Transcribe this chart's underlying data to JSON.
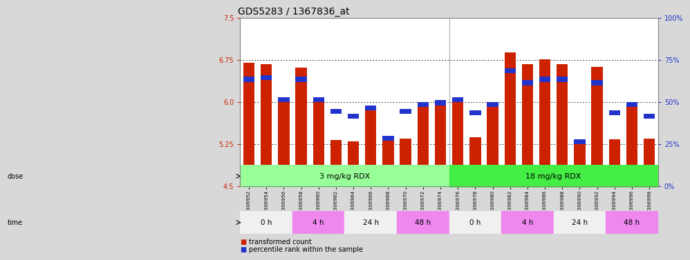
{
  "title": "GDS5283 / 1367836_at",
  "samples": [
    "GSM306952",
    "GSM306954",
    "GSM306956",
    "GSM306958",
    "GSM306960",
    "GSM306962",
    "GSM306964",
    "GSM306966",
    "GSM306968",
    "GSM306970",
    "GSM306972",
    "GSM306974",
    "GSM306976",
    "GSM306978",
    "GSM306980",
    "GSM306982",
    "GSM306984",
    "GSM306986",
    "GSM306988",
    "GSM306990",
    "GSM306992",
    "GSM306994",
    "GSM306996",
    "GSM306998"
  ],
  "transformed_count": [
    6.7,
    6.68,
    6.08,
    6.62,
    6.08,
    5.32,
    5.3,
    5.92,
    5.35,
    5.35,
    5.93,
    5.98,
    6.0,
    5.37,
    5.93,
    6.88,
    6.68,
    6.76,
    6.68,
    5.3,
    6.63,
    5.33,
    5.93,
    5.35
  ],
  "percentile_rank": [
    62,
    63,
    50,
    62,
    50,
    43,
    40,
    45,
    27,
    43,
    47,
    48,
    50,
    42,
    47,
    67,
    60,
    62,
    62,
    25,
    60,
    42,
    47,
    40
  ],
  "ylim": [
    4.5,
    7.5
  ],
  "yticks": [
    4.5,
    5.25,
    6.0,
    6.75,
    7.5
  ],
  "bar_color": "#cc2200",
  "percentile_color": "#2233cc",
  "plot_bg_color": "#ffffff",
  "fig_bg_color": "#d8d8d8",
  "left_tick_color": "#cc2200",
  "right_tick_color": "#2233cc",
  "dose_green_light": "#99ff99",
  "dose_green_dark": "#44ee44",
  "time_white": "#f0f0f0",
  "time_pink": "#ee88ee",
  "separator_color": "#aaaaaa",
  "title_fontsize": 10,
  "tick_fontsize": 7,
  "bar_width": 0.65,
  "blue_bar_height": 0.09,
  "time_groups": [
    {
      "label": "0 h",
      "start": 0,
      "end": 3,
      "color": "#f0f0f0"
    },
    {
      "label": "4 h",
      "start": 3,
      "end": 6,
      "color": "#ee88ee"
    },
    {
      "label": "24 h",
      "start": 6,
      "end": 9,
      "color": "#f0f0f0"
    },
    {
      "label": "48 h",
      "start": 9,
      "end": 12,
      "color": "#ee88ee"
    },
    {
      "label": "0 h",
      "start": 12,
      "end": 15,
      "color": "#f0f0f0"
    },
    {
      "label": "4 h",
      "start": 15,
      "end": 18,
      "color": "#ee88ee"
    },
    {
      "label": "24 h",
      "start": 18,
      "end": 21,
      "color": "#f0f0f0"
    },
    {
      "label": "48 h",
      "start": 21,
      "end": 24,
      "color": "#ee88ee"
    }
  ]
}
